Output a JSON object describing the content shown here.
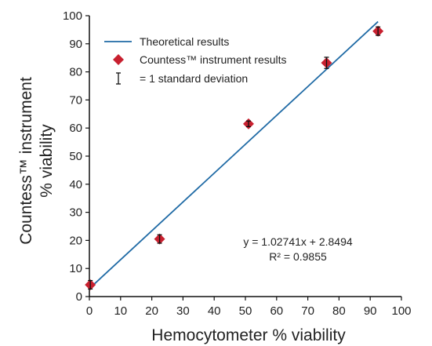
{
  "chart_data": {
    "type": "scatter",
    "xlabel": "Hemocytometer % viability",
    "ylabel_line1": "Countess™ instrument",
    "ylabel_line2": "% viability",
    "xlim": [
      0,
      100
    ],
    "ylim": [
      0,
      100
    ],
    "xticks": [
      "0",
      "10",
      "20",
      "30",
      "40",
      "50",
      "60",
      "70",
      "80",
      "90",
      "100"
    ],
    "yticks": [
      "0",
      "10",
      "20",
      "30",
      "40",
      "50",
      "60",
      "70",
      "80",
      "90",
      "100"
    ],
    "grid": false,
    "legend_position": "top-left",
    "legend": [
      {
        "label": "Theoretical results",
        "marker": "line"
      },
      {
        "label": "Countess™ instrument results",
        "marker": "diamond"
      },
      {
        "label": "= 1 standard deviation",
        "marker": "errorbar"
      }
    ],
    "series": [
      {
        "name": "Countess™ instrument results",
        "points": [
          {
            "x": 0.3,
            "y": 4.2,
            "sd": 1.5
          },
          {
            "x": 22.5,
            "y": 20.5,
            "sd": 1.5
          },
          {
            "x": 51.0,
            "y": 61.5,
            "sd": 1.0
          },
          {
            "x": 76.0,
            "y": 83.2,
            "sd": 2.0
          },
          {
            "x": 92.5,
            "y": 94.5,
            "sd": 1.5
          }
        ]
      },
      {
        "name": "Theoretical results",
        "fit": {
          "slope": 1.02741,
          "intercept": 2.8494,
          "x_range": [
            0,
            92.5
          ]
        }
      }
    ],
    "annotation_equation": "y = 1.02741x + 2.8494",
    "annotation_r2": "R² = 0.9855"
  },
  "colors": {
    "line": "#1f6aa5",
    "marker": "#c8202f",
    "axis": "#111111"
  }
}
